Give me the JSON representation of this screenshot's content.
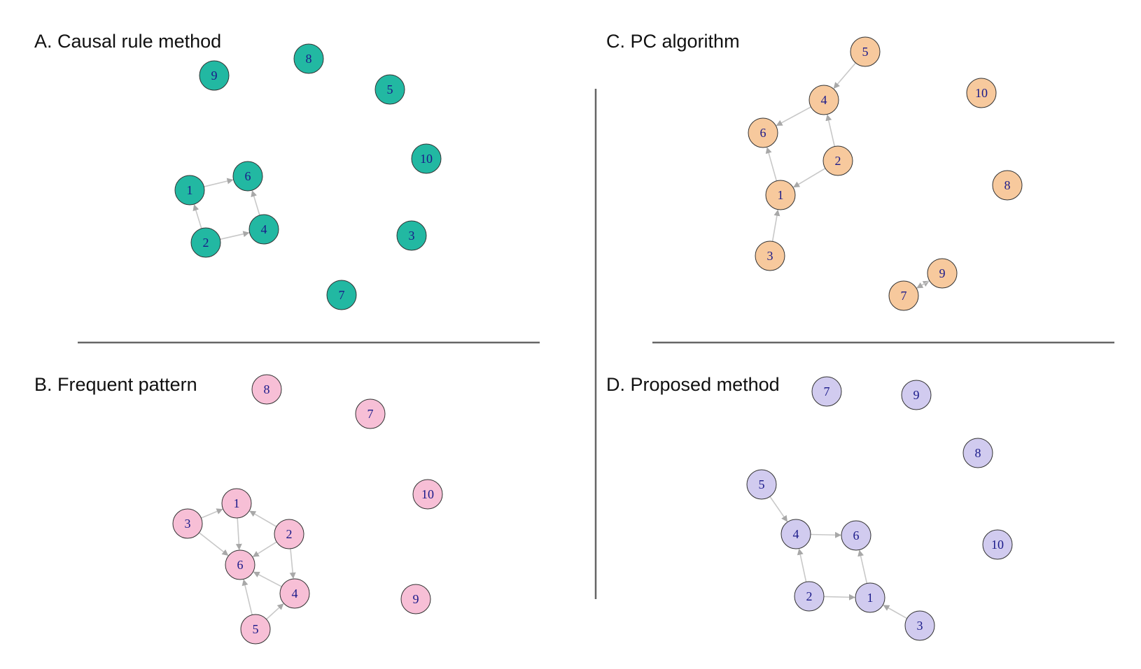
{
  "panels": [
    {
      "id": "A",
      "title": "A. Causal rule method",
      "fill": "#22b8a2",
      "nodes": [
        "1",
        "2",
        "3",
        "4",
        "5",
        "6",
        "7",
        "8",
        "9",
        "10"
      ],
      "edges": [
        [
          "1",
          "6"
        ],
        [
          "2",
          "1"
        ],
        [
          "2",
          "4"
        ],
        [
          "4",
          "6"
        ]
      ]
    },
    {
      "id": "B",
      "title": "B. Frequent pattern",
      "fill": "#f7bfd6",
      "nodes": [
        "1",
        "2",
        "3",
        "4",
        "5",
        "6",
        "7",
        "8",
        "9",
        "10"
      ],
      "edges": [
        [
          "3",
          "1"
        ],
        [
          "3",
          "6"
        ],
        [
          "1",
          "6"
        ],
        [
          "2",
          "1"
        ],
        [
          "2",
          "6"
        ],
        [
          "2",
          "4"
        ],
        [
          "4",
          "6"
        ],
        [
          "5",
          "6"
        ],
        [
          "5",
          "4"
        ]
      ]
    },
    {
      "id": "C",
      "title": "C. PC algorithm",
      "fill": "#f7c99d",
      "nodes": [
        "1",
        "2",
        "3",
        "4",
        "5",
        "6",
        "7",
        "8",
        "9",
        "10"
      ],
      "edges": [
        [
          "5",
          "4"
        ],
        [
          "4",
          "6"
        ],
        [
          "2",
          "4"
        ],
        [
          "1",
          "6"
        ],
        [
          "2",
          "1"
        ],
        [
          "3",
          "1"
        ],
        [
          "7",
          "9"
        ],
        [
          "9",
          "7"
        ]
      ]
    },
    {
      "id": "D",
      "title": "D. Proposed method",
      "fill": "#d1cbef",
      "nodes": [
        "1",
        "2",
        "3",
        "4",
        "5",
        "6",
        "7",
        "8",
        "9",
        "10"
      ],
      "edges": [
        [
          "5",
          "4"
        ],
        [
          "4",
          "6"
        ],
        [
          "2",
          "4"
        ],
        [
          "2",
          "1"
        ],
        [
          "1",
          "6"
        ],
        [
          "3",
          "1"
        ]
      ]
    }
  ],
  "colors": {
    "edge": "#c8c8c8",
    "arrow": "#a8a8a8",
    "node_stroke": "#333333",
    "label": "#1a1a8a",
    "divider": "#666666"
  }
}
